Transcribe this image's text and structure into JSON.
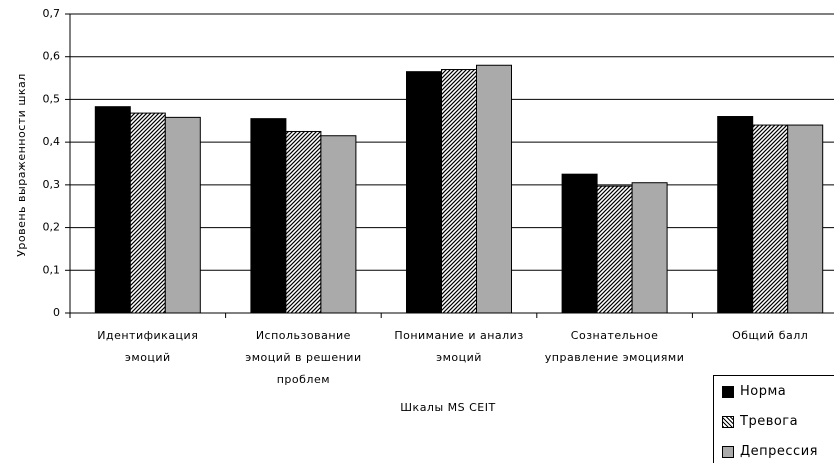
{
  "chart_data": {
    "type": "bar",
    "x_label": "Шкалы MS CEIT",
    "y_label": "Уровень выраженности шкал",
    "categories": [
      "Идентификация эмоций",
      "Использование эмоций в решении проблем",
      "Понимание и анализ эмоций",
      "Сознательное управление эмоциями",
      "Общий балл"
    ],
    "series": [
      {
        "name": "Норма",
        "color": "#000000",
        "values": [
          0.483,
          0.455,
          0.565,
          0.325,
          0.46
        ]
      },
      {
        "name": "Тревога",
        "color": "#000000",
        "pattern": "diagonal",
        "values": [
          0.468,
          0.425,
          0.57,
          0.297,
          0.44
        ]
      },
      {
        "name": "Депрессия",
        "color": "#aaaaaa",
        "values": [
          0.458,
          0.415,
          0.58,
          0.305,
          0.44
        ]
      }
    ],
    "ylim": [
      0,
      0.7
    ],
    "yticks": [
      0,
      {
        "value": 0.1,
        "label": "0,1"
      },
      {
        "value": 0.2,
        "label": "0,2"
      },
      {
        "value": 0.3,
        "label": "0,3"
      },
      {
        "value": 0.4,
        "label": "0,4"
      },
      {
        "value": 0.5,
        "label": "0,5"
      },
      {
        "value": 0.6,
        "label": "0,6"
      },
      {
        "value": 0.7,
        "label": "0,7"
      }
    ],
    "grid": true
  }
}
